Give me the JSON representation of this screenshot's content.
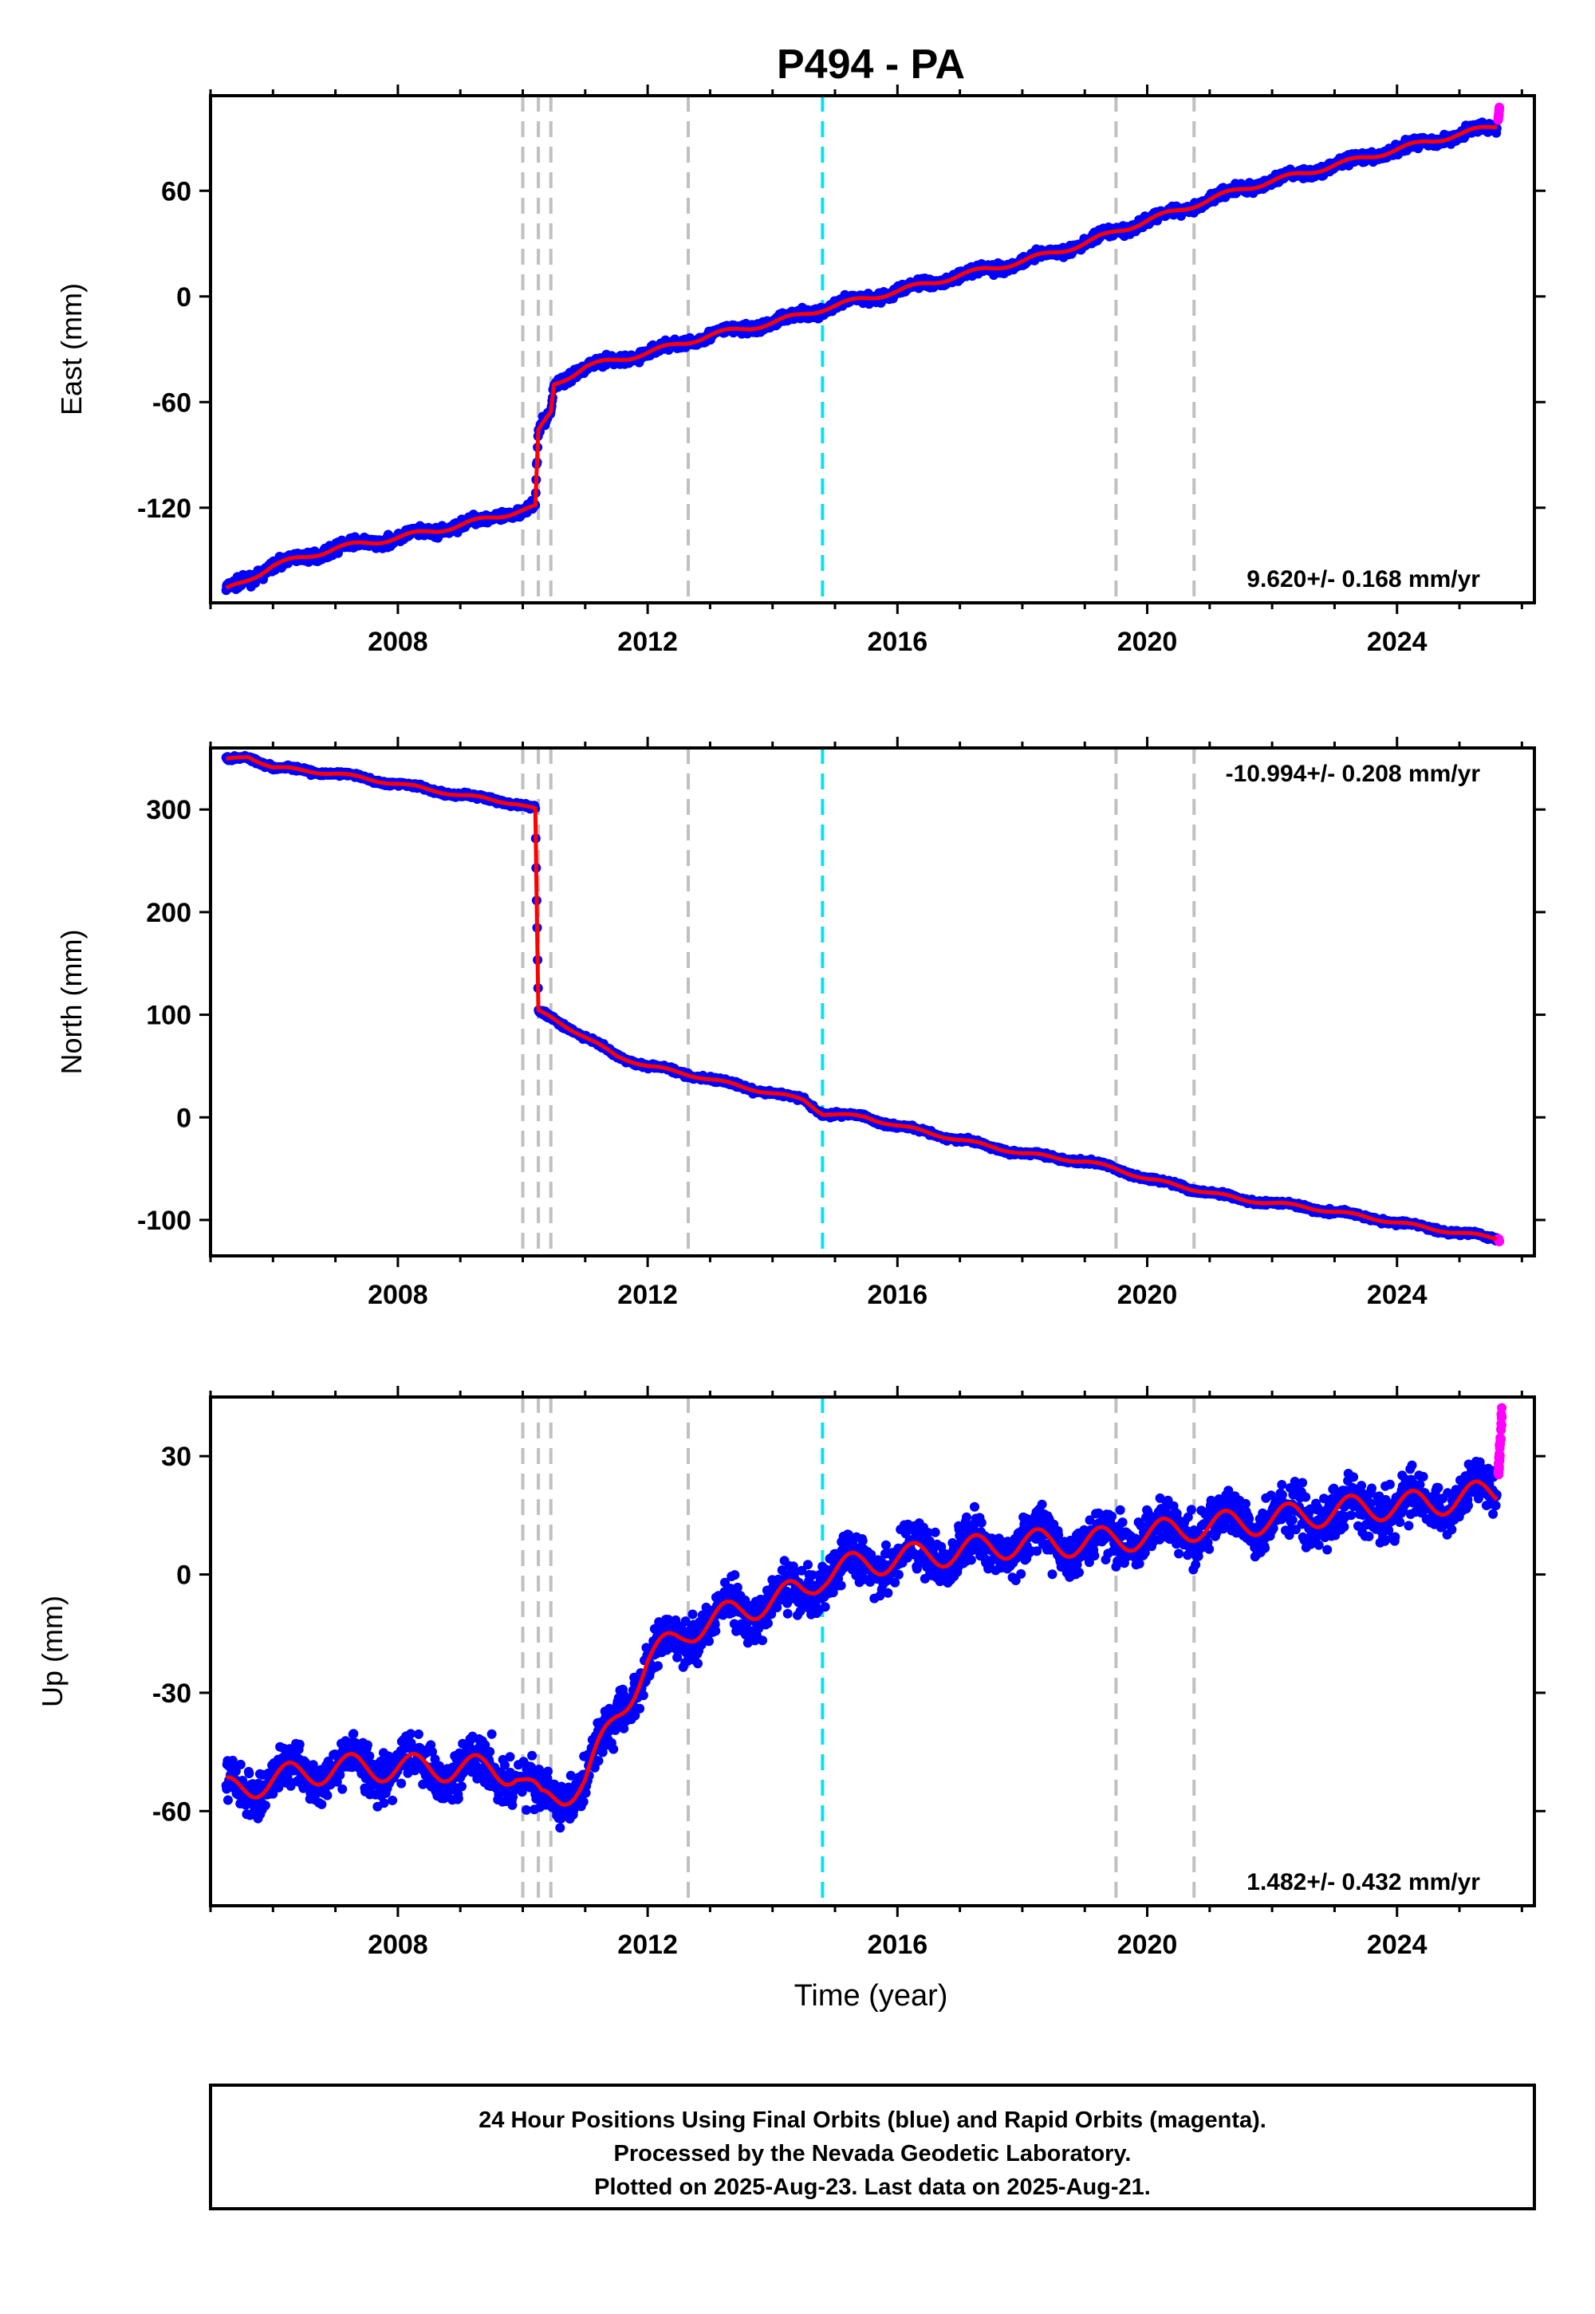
{
  "title": "P494 - PA",
  "xlabel": "Time (year)",
  "footer": {
    "line1": "24 Hour Positions Using Final Orbits (blue) and Rapid Orbits (magenta).",
    "line2": "Processed by the Nevada Geodetic Laboratory.",
    "line3": "Plotted on 2025-Aug-23. Last data on 2025-Aug-21."
  },
  "colors": {
    "final_orbits": "#0000ff",
    "rapid_orbits": "#ff00ff",
    "model_fit": "#ff0000",
    "event_line": "#c0c0c0",
    "reference_line": "#00e5ee"
  },
  "chart_data": [
    {
      "type": "scatter",
      "name": "east",
      "ylabel": "East (mm)",
      "rate_label": "9.620+/- 0.168 mm/yr",
      "xlim": [
        2005.0,
        2026.2
      ],
      "ylim": [
        -174,
        114
      ],
      "yticks": [
        -120,
        -60,
        0,
        60
      ],
      "xticks": [
        2008,
        2012,
        2016,
        2020,
        2024
      ],
      "grid": false,
      "event_lines": [
        2010.0,
        2010.25,
        2010.45,
        2012.65,
        2019.5,
        2020.75
      ],
      "reference_line": 2014.8,
      "final_series": [
        [
          2005.25,
          -167
        ],
        [
          2006.0,
          -153
        ],
        [
          2007.0,
          -143
        ],
        [
          2008.0,
          -137
        ],
        [
          2009.0,
          -130
        ],
        [
          2009.9,
          -122
        ],
        [
          2010.2,
          -120
        ],
        [
          2010.25,
          -77
        ],
        [
          2010.45,
          -66
        ],
        [
          2010.5,
          -50
        ],
        [
          2011.0,
          -40
        ],
        [
          2011.5,
          -36
        ],
        [
          2012.0,
          -32
        ],
        [
          2012.5,
          -27
        ],
        [
          2013.0,
          -22
        ],
        [
          2014.0,
          -15
        ],
        [
          2014.8,
          -7
        ],
        [
          2015.5,
          -1
        ],
        [
          2016.0,
          3
        ],
        [
          2017.0,
          12
        ],
        [
          2018.0,
          20
        ],
        [
          2019.0,
          30
        ],
        [
          2019.5,
          37
        ],
        [
          2020.0,
          43
        ],
        [
          2020.75,
          52
        ],
        [
          2021.5,
          61
        ],
        [
          2022.5,
          70
        ],
        [
          2023.5,
          79
        ],
        [
          2024.5,
          88
        ],
        [
          2025.6,
          97
        ]
      ],
      "rapid_series": [
        [
          2025.62,
          101
        ],
        [
          2025.64,
          107
        ]
      ]
    },
    {
      "type": "scatter",
      "name": "north",
      "ylabel": "North (mm)",
      "rate_label": "-10.994+/- 0.208 mm/yr",
      "xlim": [
        2005.0,
        2026.2
      ],
      "ylim": [
        -135,
        360
      ],
      "yticks": [
        -100,
        0,
        100,
        200,
        300
      ],
      "xticks": [
        2008,
        2012,
        2016,
        2020,
        2024
      ],
      "grid": false,
      "event_lines": [
        2010.0,
        2010.25,
        2010.45,
        2012.65,
        2019.5,
        2020.75
      ],
      "reference_line": 2014.8,
      "final_series": [
        [
          2005.25,
          348
        ],
        [
          2005.6,
          352
        ],
        [
          2006.0,
          341
        ],
        [
          2007.0,
          335
        ],
        [
          2008.0,
          325
        ],
        [
          2009.0,
          314
        ],
        [
          2009.9,
          306
        ],
        [
          2010.2,
          300
        ],
        [
          2010.25,
          103
        ],
        [
          2010.5,
          96
        ],
        [
          2011.0,
          78
        ],
        [
          2011.5,
          60
        ],
        [
          2012.0,
          50
        ],
        [
          2012.65,
          42
        ],
        [
          2013.5,
          30
        ],
        [
          2014.5,
          17
        ],
        [
          2014.8,
          4
        ],
        [
          2015.5,
          0
        ],
        [
          2016.0,
          -8
        ],
        [
          2017.0,
          -22
        ],
        [
          2018.0,
          -35
        ],
        [
          2019.0,
          -43
        ],
        [
          2019.5,
          -50
        ],
        [
          2020.0,
          -60
        ],
        [
          2020.75,
          -70
        ],
        [
          2021.5,
          -80
        ],
        [
          2022.5,
          -87
        ],
        [
          2023.5,
          -97
        ],
        [
          2024.5,
          -108
        ],
        [
          2025.6,
          -118
        ]
      ],
      "rapid_series": [
        [
          2025.62,
          -118
        ],
        [
          2025.64,
          -121
        ]
      ]
    },
    {
      "type": "scatter",
      "name": "up",
      "ylabel": "Up (mm)",
      "rate_label": "1.482+/- 0.432 mm/yr",
      "xlim": [
        2005.0,
        2026.2
      ],
      "ylim": [
        -84,
        45
      ],
      "yticks": [
        -60,
        -30,
        0,
        30
      ],
      "xticks": [
        2008,
        2012,
        2016,
        2020,
        2024
      ],
      "grid": false,
      "event_lines": [
        2010.0,
        2010.25,
        2010.45,
        2012.65,
        2019.5,
        2020.75
      ],
      "reference_line": 2014.8,
      "final_series": [
        [
          2005.25,
          -55
        ],
        [
          2006.0,
          -52
        ],
        [
          2007.0,
          -49
        ],
        [
          2008.0,
          -49
        ],
        [
          2009.0,
          -49
        ],
        [
          2009.9,
          -50
        ],
        [
          2010.3,
          -58
        ],
        [
          2010.6,
          -56
        ],
        [
          2011.0,
          -52
        ],
        [
          2011.5,
          -36
        ],
        [
          2012.0,
          -22
        ],
        [
          2012.65,
          -14
        ],
        [
          2013.5,
          -9
        ],
        [
          2014.5,
          -4
        ],
        [
          2014.8,
          0
        ],
        [
          2015.5,
          3
        ],
        [
          2016.0,
          4
        ],
        [
          2017.0,
          6
        ],
        [
          2018.0,
          8
        ],
        [
          2019.0,
          8
        ],
        [
          2019.5,
          9
        ],
        [
          2020.0,
          10
        ],
        [
          2020.75,
          12
        ],
        [
          2021.5,
          13
        ],
        [
          2022.5,
          15
        ],
        [
          2023.5,
          17
        ],
        [
          2024.5,
          18
        ],
        [
          2025.6,
          21
        ]
      ],
      "rapid_series": [
        [
          2025.62,
          24
        ],
        [
          2025.64,
          30
        ],
        [
          2025.66,
          36
        ],
        [
          2025.68,
          41
        ]
      ]
    }
  ]
}
